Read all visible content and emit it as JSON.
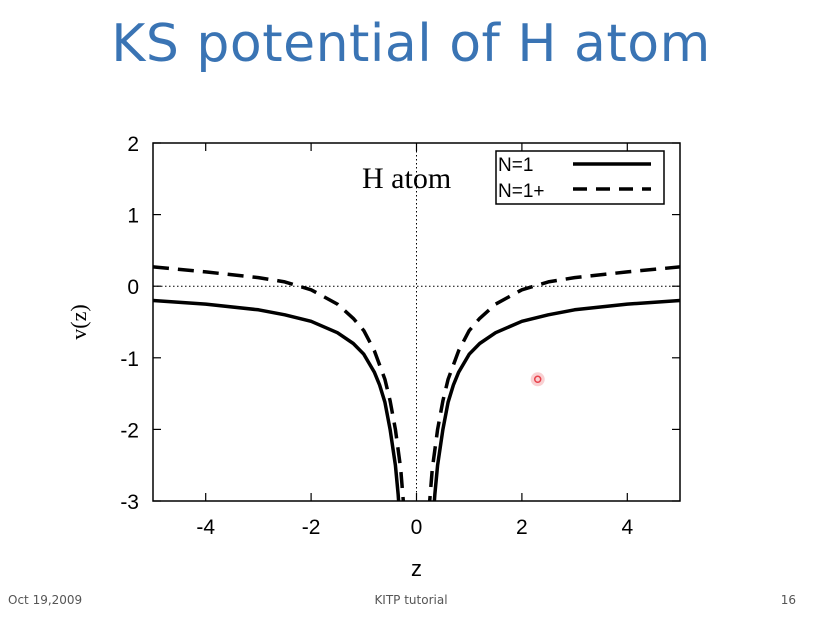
{
  "slide": {
    "title": "KS potential of H atom",
    "footer_left": "Oct 19,2009",
    "footer_center": "KITP tutorial",
    "footer_right": "16"
  },
  "colors": {
    "title": "#3a74b4",
    "line": "#000000",
    "pointer": "#e8424c"
  },
  "chart_data": {
    "type": "line",
    "annotation": "H atom",
    "xlabel": "z",
    "ylabel": "v(z)",
    "xlim": [
      -5,
      5
    ],
    "ylim": [
      -3,
      2
    ],
    "xticks": [
      -4,
      -2,
      0,
      2,
      4
    ],
    "yticks": [
      -3,
      -2,
      -1,
      0,
      1,
      2
    ],
    "legend_position": "top-right",
    "reference_lines": [
      "y=0 dotted",
      "x=0 dotted"
    ],
    "series": [
      {
        "name": "N=1",
        "style": "solid",
        "x": [
          -5,
          -4,
          -3,
          -2.5,
          -2,
          -1.5,
          -1.2,
          -1,
          -0.8,
          -0.7,
          -0.6,
          -0.5,
          -0.4,
          -0.35,
          0.35,
          0.4,
          0.5,
          0.6,
          0.7,
          0.8,
          1,
          1.2,
          1.5,
          2,
          2.5,
          3,
          4,
          5
        ],
        "y": [
          -0.2,
          -0.25,
          -0.33,
          -0.4,
          -0.49,
          -0.65,
          -0.8,
          -0.95,
          -1.2,
          -1.38,
          -1.62,
          -2.0,
          -2.5,
          -2.9,
          -2.9,
          -2.5,
          -2.0,
          -1.62,
          -1.38,
          -1.2,
          -0.95,
          -0.8,
          -0.65,
          -0.49,
          -0.4,
          -0.33,
          -0.25,
          -0.2
        ]
      },
      {
        "name": "N=1+",
        "style": "dashed",
        "x": [
          -5,
          -4,
          -3,
          -2.5,
          -2,
          -1.5,
          -1.2,
          -1,
          -0.8,
          -0.6,
          -0.5,
          -0.4,
          -0.3,
          -0.25,
          0.25,
          0.3,
          0.4,
          0.5,
          0.6,
          0.8,
          1,
          1.2,
          1.5,
          2,
          2.5,
          3,
          4,
          5
        ],
        "y": [
          0.27,
          0.2,
          0.12,
          0.06,
          -0.05,
          -0.25,
          -0.45,
          -0.62,
          -0.9,
          -1.3,
          -1.6,
          -2.0,
          -2.55,
          -3.0,
          -3.0,
          -2.55,
          -2.0,
          -1.6,
          -1.3,
          -0.9,
          -0.62,
          -0.45,
          -0.25,
          -0.05,
          0.06,
          0.12,
          0.2,
          0.27
        ]
      }
    ]
  },
  "pointer": {
    "x": 2.3,
    "y": -1.3
  }
}
